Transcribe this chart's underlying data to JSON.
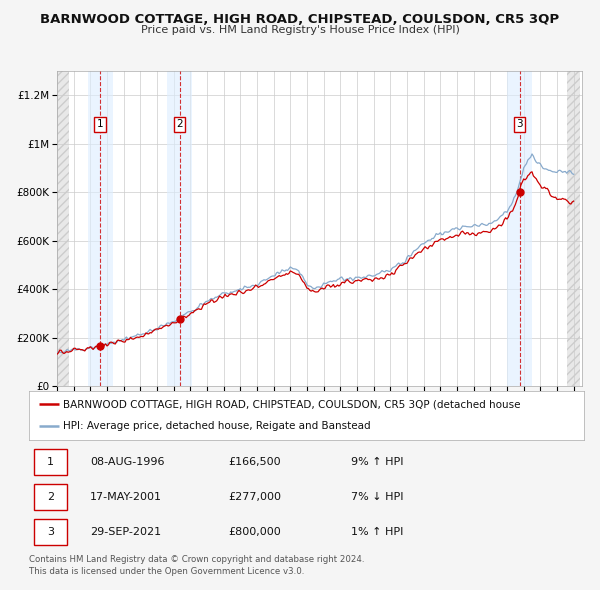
{
  "title": "BARNWOOD COTTAGE, HIGH ROAD, CHIPSTEAD, COULSDON, CR5 3QP",
  "subtitle": "Price paid vs. HM Land Registry's House Price Index (HPI)",
  "ylim": [
    0,
    1300000
  ],
  "ytick_values": [
    0,
    200000,
    400000,
    600000,
    800000,
    1000000,
    1200000
  ],
  "x_start_year": 1994,
  "x_end_year": 2025,
  "sale_color": "#cc0000",
  "hpi_color": "#88aacc",
  "background_color": "#f5f5f5",
  "plot_bg_color": "#ffffff",
  "grid_color": "#cccccc",
  "vline_years": [
    1996.58,
    2001.37,
    2021.75
  ],
  "sale_points": [
    {
      "year": 1996.58,
      "value": 166500,
      "label": "1"
    },
    {
      "year": 2001.37,
      "value": 277000,
      "label": "2"
    },
    {
      "year": 2021.75,
      "value": 800000,
      "label": "3"
    }
  ],
  "legend_sale_label": "BARNWOOD COTTAGE, HIGH ROAD, CHIPSTEAD, COULSDON, CR5 3QP (detached house",
  "legend_hpi_label": "HPI: Average price, detached house, Reigate and Banstead",
  "table_rows": [
    {
      "num": "1",
      "date": "08-AUG-1996",
      "price": "£166,500",
      "hpi": "9% ↑ HPI"
    },
    {
      "num": "2",
      "date": "17-MAY-2001",
      "price": "£277,000",
      "hpi": "7% ↓ HPI"
    },
    {
      "num": "3",
      "date": "29-SEP-2021",
      "price": "£800,000",
      "hpi": "1% ↑ HPI"
    }
  ],
  "footer_text": "Contains HM Land Registry data © Crown copyright and database right 2024.\nThis data is licensed under the Open Government Licence v3.0."
}
